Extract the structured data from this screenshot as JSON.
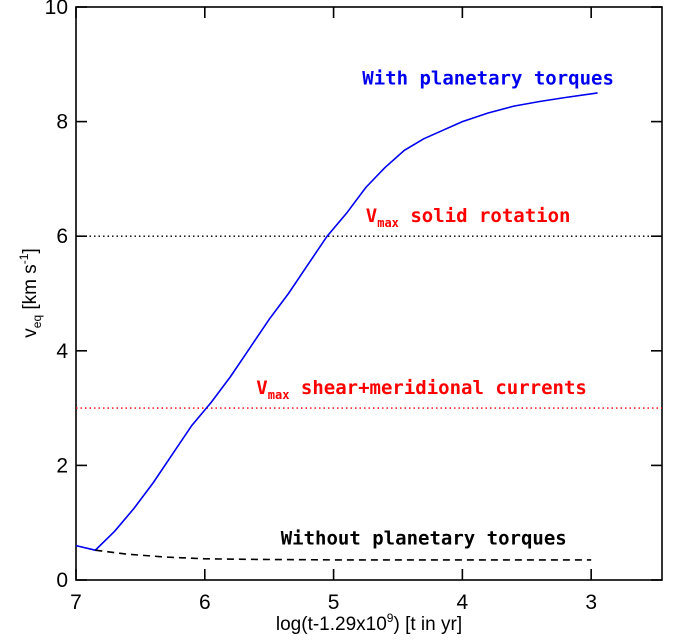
{
  "chart_data": {
    "type": "line",
    "xlabel": "log(t-1.29x10",
    "xlabel_sup": "9",
    "xlabel_tail": ") [t in yr]",
    "ylabel": "v",
    "ylabel_sub": "eq",
    "ylabel_unit": " [km s",
    "ylabel_sup": "-1",
    "ylabel_tail": "]",
    "xlim": [
      7,
      2.45
    ],
    "ylim": [
      0,
      10
    ],
    "x_reversed": true,
    "xticks": [
      7,
      6,
      5,
      4,
      3
    ],
    "yticks": [
      0,
      2,
      4,
      6,
      8,
      10
    ],
    "xtick_labels": [
      "7",
      "6",
      "5",
      "4",
      "3"
    ],
    "ytick_labels": [
      "0",
      "2",
      "4",
      "6",
      "8",
      "10"
    ],
    "grid": false,
    "legend": "none",
    "series": [
      {
        "style": "solid",
        "color": "#0000ee",
        "x": [
          7.0,
          6.85,
          6.7,
          6.55,
          6.4,
          6.25,
          6.1,
          5.95,
          5.8,
          5.65,
          5.5,
          5.35,
          5.2,
          5.05,
          4.9,
          4.75,
          4.6,
          4.45,
          4.3,
          4.15,
          4.0,
          3.8,
          3.6,
          3.4,
          3.2,
          2.95
        ],
        "y": [
          0.6,
          0.52,
          0.85,
          1.25,
          1.7,
          2.2,
          2.7,
          3.1,
          3.55,
          4.05,
          4.55,
          5.0,
          5.5,
          6.0,
          6.4,
          6.85,
          7.2,
          7.5,
          7.7,
          7.85,
          8.0,
          8.15,
          8.27,
          8.35,
          8.42,
          8.5
        ]
      },
      {
        "style": "dashed",
        "color": "#000000",
        "x": [
          6.85,
          6.6,
          6.3,
          6.0,
          5.6,
          5.0,
          4.0,
          3.0
        ],
        "y": [
          0.52,
          0.45,
          0.4,
          0.37,
          0.36,
          0.35,
          0.35,
          0.35
        ]
      }
    ],
    "hlines": [
      {
        "y": 6,
        "color": "#000000",
        "style": "dotted"
      },
      {
        "y": 3,
        "color": "#ff0000",
        "style": "dotted"
      }
    ],
    "annotations": {
      "with_torques": {
        "text": "With planetary torques",
        "color": "#0000ee",
        "x": 3.8,
        "y": 8.65
      },
      "without_torques": {
        "text": "Without planetary torques",
        "color": "#000000",
        "x": 4.3,
        "y": 0.62
      },
      "vmax_solid": {
        "main": "V",
        "sub": "max",
        "rest": " solid rotation",
        "color": "#ff0000",
        "x": 4.75,
        "y": 6.25
      },
      "vmax_shear": {
        "main": "V",
        "sub": "max",
        "rest": " shear+meridional currents",
        "color": "#ff0000",
        "x": 5.6,
        "y": 3.25
      }
    }
  }
}
